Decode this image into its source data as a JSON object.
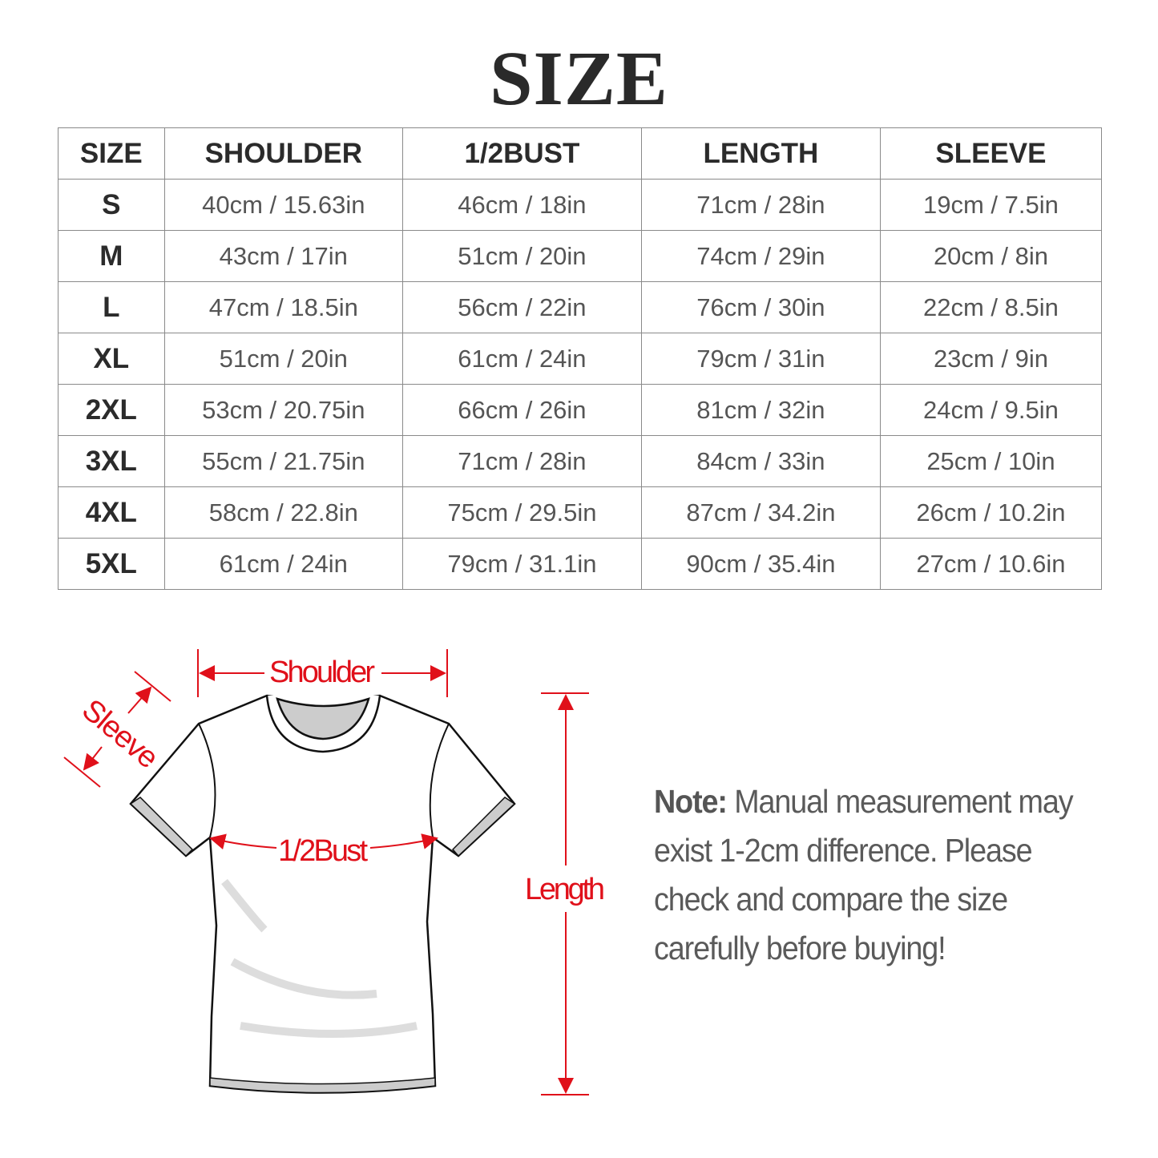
{
  "title": "SIZE",
  "table": {
    "headers": [
      "SIZE",
      "SHOULDER",
      "1/2BUST",
      "LENGTH",
      "SLEEVE"
    ],
    "rows": [
      [
        "S",
        "40cm / 15.63in",
        "46cm / 18in",
        "71cm / 28in",
        "19cm / 7.5in"
      ],
      [
        "M",
        "43cm / 17in",
        "51cm / 20in",
        "74cm / 29in",
        "20cm / 8in"
      ],
      [
        "L",
        "47cm / 18.5in",
        "56cm / 22in",
        "76cm / 30in",
        "22cm / 8.5in"
      ],
      [
        "XL",
        "51cm / 20in",
        "61cm / 24in",
        "79cm / 31in",
        "23cm / 9in"
      ],
      [
        "2XL",
        "53cm / 20.75in",
        "66cm / 26in",
        "81cm / 32in",
        "24cm / 9.5in"
      ],
      [
        "3XL",
        "55cm / 21.75in",
        "71cm / 28in",
        "84cm / 33in",
        "25cm / 10in"
      ],
      [
        "4XL",
        "58cm / 22.8in",
        "75cm / 29.5in",
        "87cm / 34.2in",
        "26cm / 10.2in"
      ],
      [
        "5XL",
        "61cm / 24in",
        "79cm / 31.1in",
        "90cm / 35.4in",
        "27cm / 10.6in"
      ]
    ]
  },
  "diagram": {
    "shoulder": "Shoulder",
    "sleeve": "Sleeve",
    "bust": "1/2Bust",
    "length": "Length",
    "accent": "#e0101a"
  },
  "note": {
    "label": "Note:",
    "text": " Manual measurement may exist 1-2cm difference. Please check and compare the size carefully before buying!"
  }
}
